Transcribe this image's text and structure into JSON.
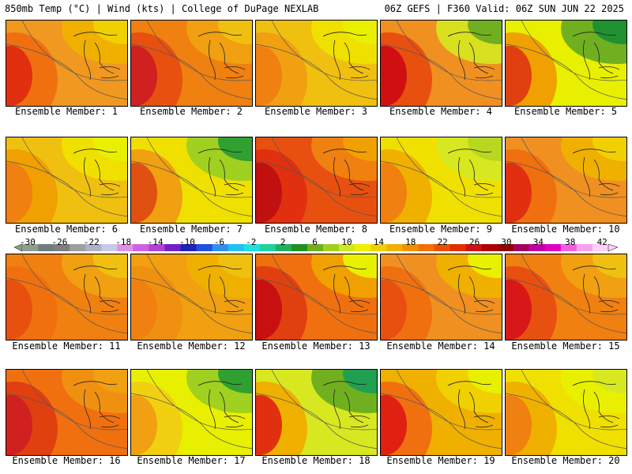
{
  "header": {
    "left": "850mb Temp (°C) | Wind (kts) | College of DuPage NEXLAB",
    "right": "06Z GEFS | F360 Valid: 06Z SUN JUN 22 2025"
  },
  "panel_label_prefix": "Ensemble Member: ",
  "colorbar": {
    "tick_labels": [
      "-30",
      "-26",
      "-22",
      "-18",
      "-14",
      "-10",
      "-6",
      "-2",
      "2",
      "6",
      "10",
      "14",
      "18",
      "22",
      "26",
      "30",
      "34",
      "38",
      "42"
    ],
    "colors": [
      "#8e9e8e",
      "#6e7e7e",
      "#7e7e7e",
      "#9e9e9e",
      "#b0b0c8",
      "#c8c8e8",
      "#e090e8",
      "#d060e0",
      "#b040d8",
      "#7020c8",
      "#2020c0",
      "#2050e0",
      "#3090f0",
      "#20c0f0",
      "#20e0e0",
      "#20d0a0",
      "#20b060",
      "#209020",
      "#70b020",
      "#a0d020",
      "#d0e820",
      "#f0f000",
      "#f0d000",
      "#f0b000",
      "#f09000",
      "#f07000",
      "#e85000",
      "#e03000",
      "#d01010",
      "#b00000",
      "#900000",
      "#a00060",
      "#c000a0",
      "#e000c0",
      "#f060e0",
      "#f8a0f0",
      "#ffd0f8"
    ]
  },
  "members": [
    {
      "number": 1,
      "colors": [
        "#e03010",
        "#f07010",
        "#f09820",
        "#f0b000",
        "#f0d000"
      ]
    },
    {
      "number": 2,
      "colors": [
        "#d02020",
        "#e85010",
        "#f08010",
        "#f0a010",
        "#f0c010"
      ]
    },
    {
      "number": 3,
      "colors": [
        "#f08010",
        "#f0a010",
        "#f0c010",
        "#f0e000",
        "#e8f000"
      ]
    },
    {
      "number": 4,
      "colors": [
        "#d01010",
        "#e85010",
        "#f09020",
        "#d8e020",
        "#70b020"
      ]
    },
    {
      "number": 5,
      "colors": [
        "#e04010",
        "#f0a000",
        "#e8f000",
        "#70b020",
        "#209030"
      ]
    },
    {
      "number": 6,
      "colors": [
        "#f08010",
        "#f0a000",
        "#f0c010",
        "#f0e000",
        "#e8f000"
      ]
    },
    {
      "number": 7,
      "colors": [
        "#e05010",
        "#f0a010",
        "#f0e000",
        "#a0d020",
        "#30a030"
      ]
    },
    {
      "number": 8,
      "colors": [
        "#c01010",
        "#e03010",
        "#e85010",
        "#f08010",
        "#f0a000"
      ]
    },
    {
      "number": 9,
      "colors": [
        "#f08010",
        "#f0b000",
        "#f0e000",
        "#d8e820",
        "#b8d820"
      ]
    },
    {
      "number": 10,
      "colors": [
        "#e03010",
        "#f07010",
        "#f09020",
        "#f0b000",
        "#f0d000"
      ]
    },
    {
      "number": 11,
      "colors": [
        "#e85010",
        "#f07010",
        "#f08010",
        "#f0a010",
        "#f0c010"
      ]
    },
    {
      "number": 12,
      "colors": [
        "#f08010",
        "#f09010",
        "#f0a010",
        "#f0b000",
        "#f0c010"
      ]
    },
    {
      "number": 13,
      "colors": [
        "#c81010",
        "#e04010",
        "#f07010",
        "#f0a000",
        "#e8f000"
      ]
    },
    {
      "number": 14,
      "colors": [
        "#e85010",
        "#f07010",
        "#f09020",
        "#f0b000",
        "#e8f000"
      ]
    },
    {
      "number": 15,
      "colors": [
        "#d81818",
        "#e85010",
        "#f08010",
        "#f0a010",
        "#f0c010"
      ]
    },
    {
      "number": 16,
      "colors": [
        "#d02020",
        "#e04010",
        "#f07010",
        "#f09010",
        "#f0a010"
      ]
    },
    {
      "number": 17,
      "colors": [
        "#f0a010",
        "#f0d010",
        "#e8f000",
        "#a0d020",
        "#30a030"
      ]
    },
    {
      "number": 18,
      "colors": [
        "#e03010",
        "#f0b000",
        "#d8e820",
        "#70b020",
        "#20a050"
      ]
    },
    {
      "number": 19,
      "colors": [
        "#e02010",
        "#f07010",
        "#f0b000",
        "#f0d000",
        "#e8f000"
      ]
    },
    {
      "number": 20,
      "colors": [
        "#f08010",
        "#f0b000",
        "#f0e000",
        "#e8f000",
        "#d8e820"
      ]
    }
  ]
}
